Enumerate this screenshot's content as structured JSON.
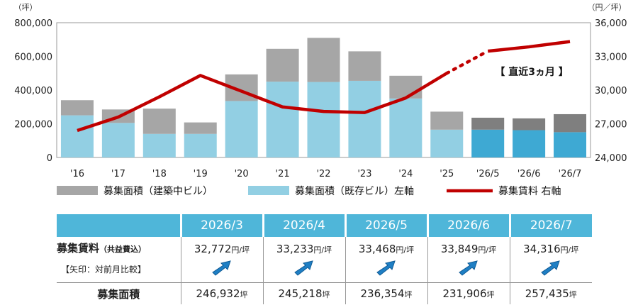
{
  "chart_data": {
    "type": "bar",
    "left_unit": "（坪）",
    "right_unit": "（円／坪）",
    "categories": [
      "'16",
      "'17",
      "'18",
      "'19",
      "'20",
      "'21",
      "'22",
      "'23",
      "'24",
      "'25",
      "'26/5",
      "'26/6",
      "'26/7"
    ],
    "left_axis": {
      "ylim": [
        0,
        800000
      ],
      "ticks": [
        "0",
        "200,000",
        "400,000",
        "600,000",
        "800,000"
      ]
    },
    "right_axis": {
      "ylim": [
        24000,
        36000
      ],
      "ticks": [
        "24,000",
        "27,000",
        "30,000",
        "33,000",
        "36,000"
      ]
    },
    "series": [
      {
        "name": "募集面積（既存ビル）左軸",
        "type": "bar",
        "axis": "left",
        "values": [
          250000,
          205000,
          140000,
          140000,
          335000,
          450000,
          448000,
          455000,
          350000,
          165000,
          165000,
          162000,
          150000
        ]
      },
      {
        "name": "募集面積（建築中ビル）",
        "type": "bar",
        "axis": "left",
        "values": [
          90000,
          80000,
          150000,
          68000,
          158000,
          195000,
          262000,
          175000,
          135000,
          107000,
          71000,
          70000,
          107000
        ]
      },
      {
        "name": "募集賃料 右軸",
        "type": "line",
        "axis": "right",
        "values": [
          26400,
          27600,
          29400,
          31300,
          29900,
          28500,
          28100,
          28000,
          29300,
          31500,
          33468,
          33849,
          34316
        ]
      }
    ],
    "annotation": "【 直近3ヵ月 】",
    "legend": "bottom"
  },
  "colors": {
    "existing": "#92cfe3",
    "existing_recent": "#3ea9d3",
    "construction": "#a6a6a6",
    "construction_recent": "#7f7f7f",
    "rent_line": "#c00000",
    "header_bg": "#4fb6d9",
    "arrow": "#1f7fc4"
  },
  "table": {
    "months": [
      "2026/3",
      "2026/4",
      "2026/5",
      "2026/6",
      "2026/7"
    ],
    "rent_label": "募集賃料",
    "rent_label_note": "（共益費込）",
    "arrow_label": "【矢印：対前月比較】",
    "rent_values": [
      "32,772",
      "33,233",
      "33,468",
      "33,849",
      "34,316"
    ],
    "rent_unit": "円/坪",
    "arrow_icons": [
      "up-right-arrow-icon",
      "up-right-arrow-icon",
      "up-right-arrow-icon",
      "up-right-arrow-icon",
      "up-right-arrow-icon"
    ],
    "area_label": "募集面積",
    "area_values": [
      "246,932",
      "245,218",
      "236,354",
      "231,906",
      "257,435"
    ],
    "area_unit": "坪"
  }
}
